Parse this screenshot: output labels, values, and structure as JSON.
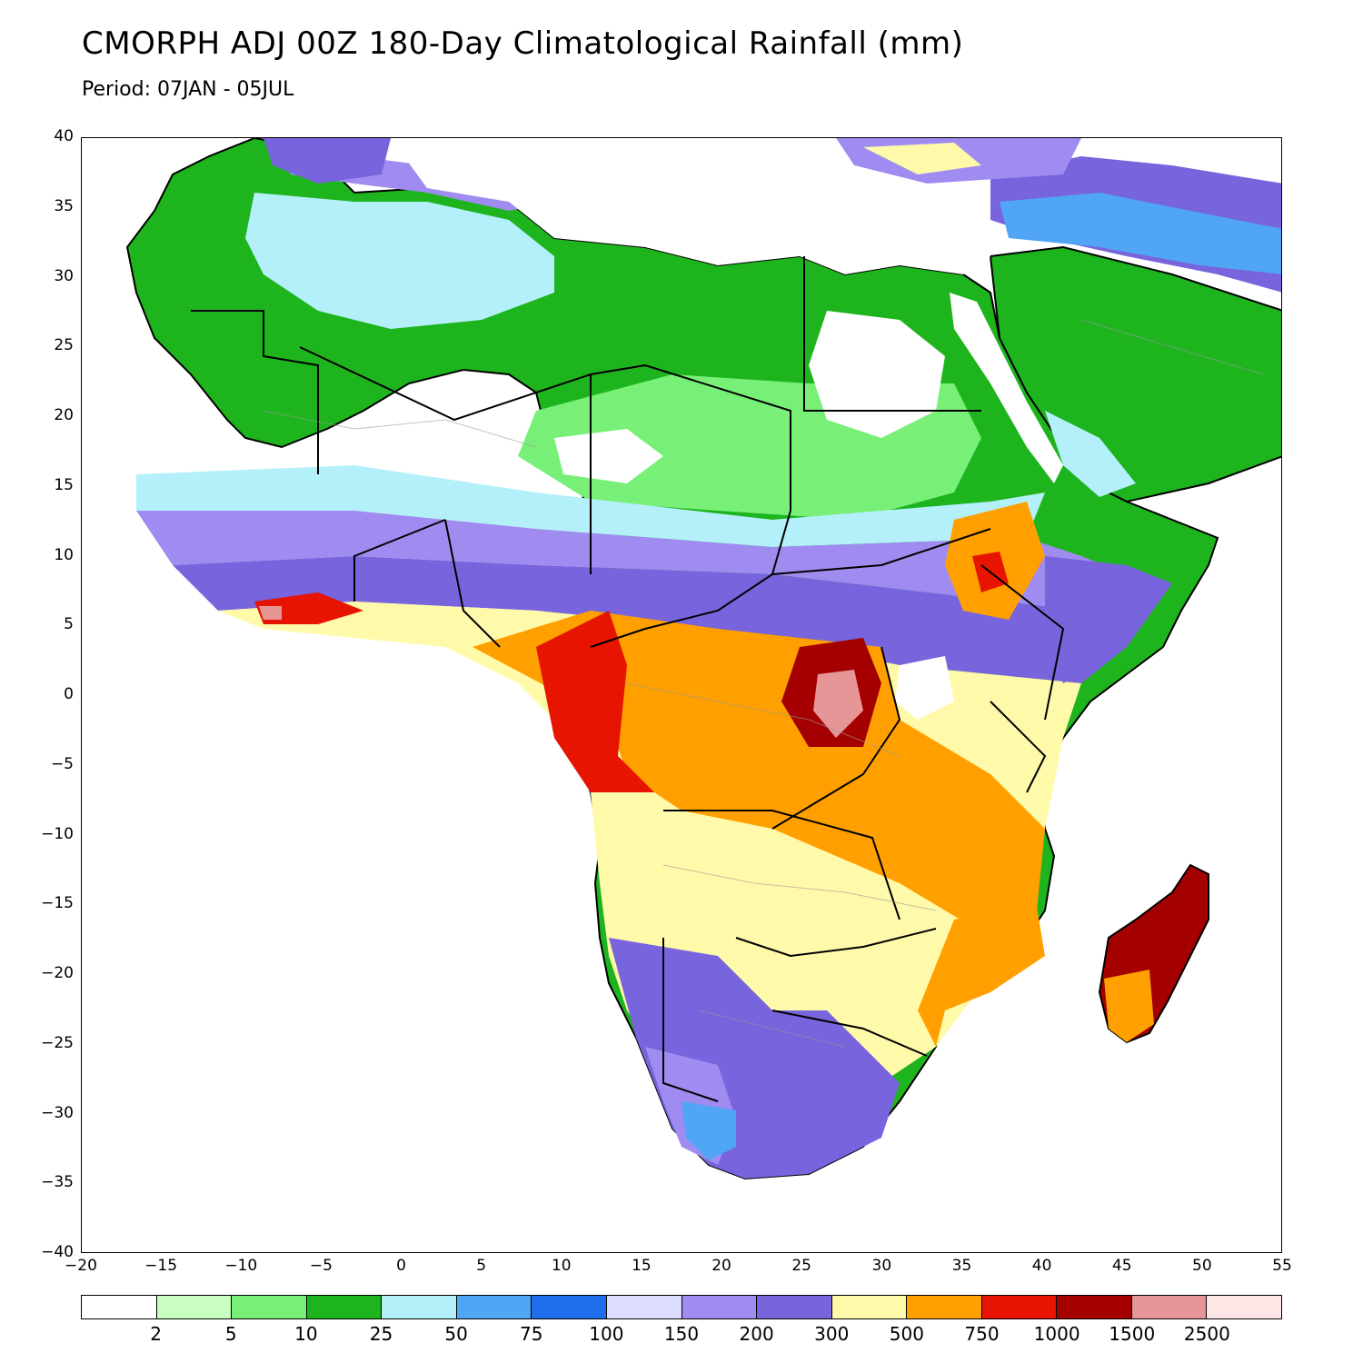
{
  "title": "CMORPH ADJ 00Z 180-Day Climatological Rainfall (mm)",
  "subtitle": "Period: 07JAN - 05JUL",
  "map": {
    "lon_range": [
      -20,
      55
    ],
    "lat_range": [
      -40,
      40
    ],
    "lon_ticks": [
      "−20",
      "−15",
      "−10",
      "−5",
      "0",
      "5",
      "10",
      "15",
      "20",
      "25",
      "30",
      "35",
      "40",
      "45",
      "50",
      "55"
    ],
    "lat_ticks": [
      "40",
      "35",
      "30",
      "25",
      "20",
      "15",
      "10",
      "5",
      "0",
      "−5",
      "−10",
      "−15",
      "−20",
      "−25",
      "−30",
      "−35",
      "−40"
    ]
  },
  "legend": {
    "colors": [
      "#ffffff",
      "#c8ffc0",
      "#78f078",
      "#1eb41e",
      "#b4f0fa",
      "#50a5f5",
      "#1e6eeb",
      "#dcdcff",
      "#a08cf0",
      "#7864dc",
      "#fffaaa",
      "#ffa000",
      "#e61400",
      "#a50000",
      "#e69696",
      "#ffe6e6"
    ],
    "labels": [
      "2",
      "5",
      "10",
      "25",
      "50",
      "75",
      "100",
      "150",
      "200",
      "300",
      "500",
      "750",
      "1000",
      "1500",
      "2500"
    ]
  }
}
